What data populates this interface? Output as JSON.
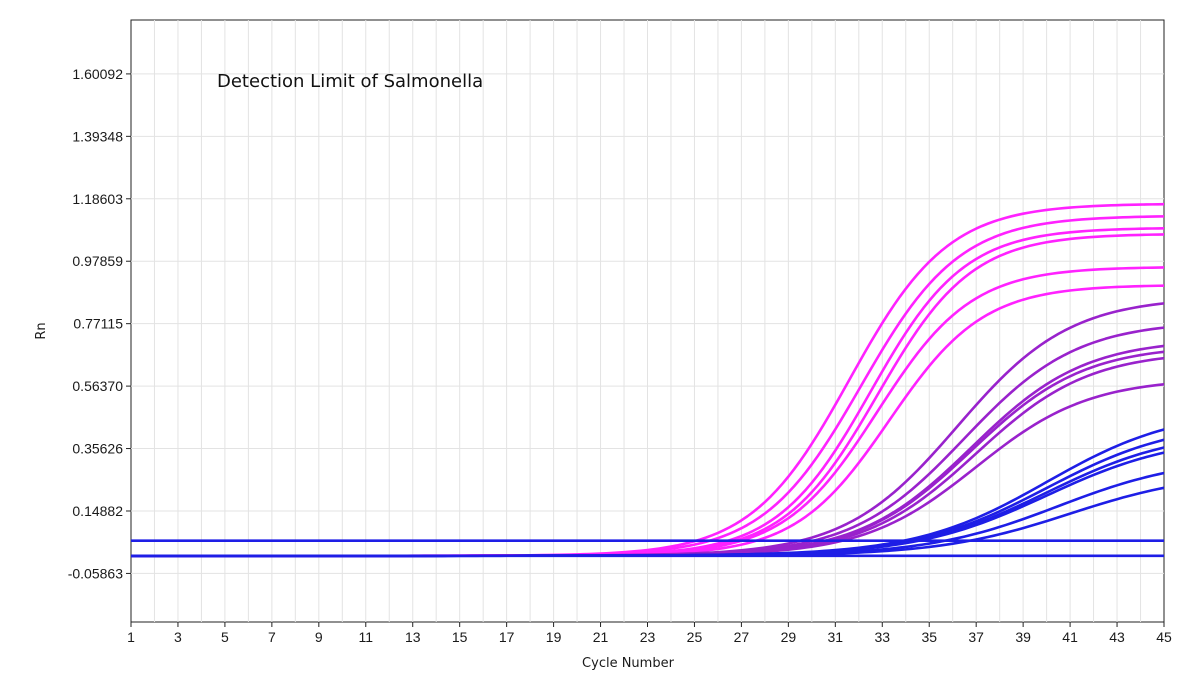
{
  "chart_data": {
    "type": "line",
    "title": "Detection Limit of Salmonella",
    "xlabel": "Cycle Number",
    "ylabel": "Rn",
    "xlim": [
      1,
      45
    ],
    "ylim": [
      -0.22,
      1.78
    ],
    "x_ticks": [
      1,
      3,
      5,
      7,
      9,
      11,
      13,
      15,
      17,
      19,
      21,
      23,
      25,
      27,
      29,
      31,
      33,
      35,
      37,
      39,
      41,
      43,
      45
    ],
    "y_ticks": [
      1.60092,
      1.39348,
      1.18603,
      0.97859,
      0.77115,
      0.5637,
      0.35626,
      0.14882,
      -0.05863
    ],
    "y_tick_labels": [
      "1.60092",
      "1.39348",
      "1.18603",
      "0.97859",
      "0.77115",
      "0.56370",
      "0.35626",
      "0.14882",
      "-0.05863"
    ],
    "grid": true,
    "threshold_lines": [
      {
        "y": 0.05,
        "color": "#1e1ee6"
      },
      {
        "y": 0.0,
        "color": "#1e1ee6"
      }
    ],
    "series_groups": [
      {
        "color": "#ff22ff",
        "curves": [
          {
            "plateau": 1.17,
            "midpoint": 31.6,
            "slope": 2.1
          },
          {
            "plateau": 1.13,
            "midpoint": 32.1,
            "slope": 2.1
          },
          {
            "plateau": 1.09,
            "midpoint": 32.5,
            "slope": 2.0
          },
          {
            "plateau": 1.07,
            "midpoint": 32.8,
            "slope": 2.0
          },
          {
            "plateau": 0.96,
            "midpoint": 32.8,
            "slope": 2.0
          },
          {
            "plateau": 0.9,
            "midpoint": 33.3,
            "slope": 2.0
          }
        ]
      },
      {
        "color": "#9922cc",
        "curves": [
          {
            "plateau": 0.86,
            "midpoint": 36.2,
            "slope": 2.4
          },
          {
            "plateau": 0.78,
            "midpoint": 36.5,
            "slope": 2.4
          },
          {
            "plateau": 0.72,
            "midpoint": 36.8,
            "slope": 2.4
          },
          {
            "plateau": 0.7,
            "midpoint": 36.8,
            "slope": 2.4
          },
          {
            "plateau": 0.68,
            "midpoint": 37.0,
            "slope": 2.4
          },
          {
            "plateau": 0.59,
            "midpoint": 37.0,
            "slope": 2.4
          }
        ]
      },
      {
        "color": "#1e1ee6",
        "curves": [
          {
            "plateau": 0.49,
            "midpoint": 40.0,
            "slope": 2.8
          },
          {
            "plateau": 0.45,
            "midpoint": 40.0,
            "slope": 2.8
          },
          {
            "plateau": 0.42,
            "midpoint": 40.0,
            "slope": 2.8
          },
          {
            "plateau": 0.4,
            "midpoint": 40.0,
            "slope": 2.8
          },
          {
            "plateau": 0.33,
            "midpoint": 40.5,
            "slope": 2.8
          },
          {
            "plateau": 0.28,
            "midpoint": 41.0,
            "slope": 2.8
          }
        ]
      }
    ]
  }
}
